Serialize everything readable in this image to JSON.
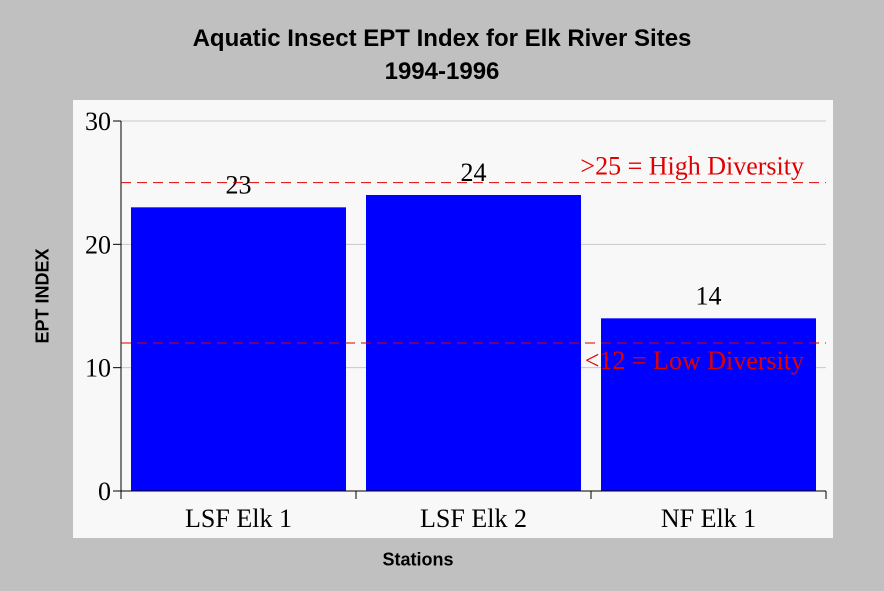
{
  "chart_data": {
    "type": "bar",
    "title": "Aquatic Insect EPT Index for Elk River Sites",
    "subtitle": "1994-1996",
    "xlabel": "Stations",
    "ylabel": "EPT INDEX",
    "categories": [
      "LSF Elk 1",
      "LSF Elk 2",
      "NF Elk 1"
    ],
    "values": [
      23,
      24,
      14
    ],
    "ylim": [
      0,
      30
    ],
    "yticks": [
      0,
      10,
      20,
      30
    ],
    "grid": true,
    "bar_color": "#0000ff",
    "reference_lines": [
      {
        "value": 25,
        "label": ">25 = High Diversity",
        "color": "#e00000",
        "style": "dashed"
      },
      {
        "value": 12,
        "label": "<12 = Low Diversity",
        "color": "#e00000",
        "style": "dashed"
      }
    ]
  }
}
